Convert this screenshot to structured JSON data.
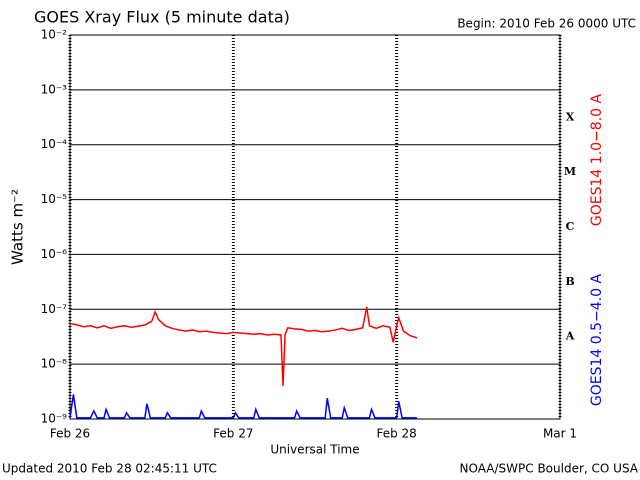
{
  "chart_data": {
    "type": "line",
    "title": "GOES Xray Flux (5 minute data)",
    "subtitle": "Begin:  2010 Feb 26 0000 UTC",
    "xlabel": "Universal Time",
    "ylabel": "Watts m⁻²",
    "footer_left": "Updated 2010 Feb 28 02:45:11 UTC",
    "footer_right": "NOAA/SWPC Boulder, CO USA",
    "log_y": true,
    "grid": true,
    "xlim": [
      0,
      72
    ],
    "xticks": [
      {
        "value": 0,
        "label": "Feb 26"
      },
      {
        "value": 24,
        "label": "Feb 27"
      },
      {
        "value": 48,
        "label": "Feb 28"
      },
      {
        "value": 72,
        "label": "Mar 1"
      }
    ],
    "ylim": [
      1e-09,
      0.01
    ],
    "yticks": [
      {
        "value": 1e-09,
        "label": "10⁻⁹"
      },
      {
        "value": 1e-08,
        "label": "10⁻⁸"
      },
      {
        "value": 1e-07,
        "label": "10⁻⁷"
      },
      {
        "value": 1e-06,
        "label": "10⁻⁶"
      },
      {
        "value": 1e-05,
        "label": "10⁻⁵"
      },
      {
        "value": 0.0001,
        "label": "10⁻⁴"
      },
      {
        "value": 0.001,
        "label": "10⁻³"
      },
      {
        "value": 0.01,
        "label": "10⁻²"
      }
    ],
    "flare_classes": [
      "X",
      "M",
      "C",
      "B",
      "A"
    ],
    "series": [
      {
        "name": "GOES14 1.0−8.0 A",
        "color": "#ff0000",
        "x": [
          0,
          1,
          2,
          3,
          4,
          5,
          6,
          7,
          8,
          9,
          10,
          11,
          12,
          12.5,
          13,
          14,
          15,
          16,
          17,
          18,
          19,
          20,
          21,
          22,
          23,
          24,
          25,
          26,
          27,
          28,
          29,
          30,
          31,
          31.3,
          31.6,
          32,
          33,
          34,
          35,
          36,
          37,
          38,
          39,
          40,
          41,
          42,
          43,
          43.6,
          44,
          45,
          46,
          47,
          47.5,
          48,
          48.3,
          49,
          50,
          51
        ],
        "values": [
          5.5e-08,
          5.2e-08,
          4.8e-08,
          5e-08,
          4.6e-08,
          5e-08,
          4.5e-08,
          4.8e-08,
          5e-08,
          4.7e-08,
          4.9e-08,
          5.2e-08,
          6e-08,
          9e-08,
          6.5e-08,
          5e-08,
          4.5e-08,
          4.2e-08,
          4e-08,
          4.2e-08,
          3.9e-08,
          4e-08,
          3.8e-08,
          3.7e-08,
          3.6e-08,
          3.8e-08,
          3.7e-08,
          3.6e-08,
          3.5e-08,
          3.6e-08,
          3.4e-08,
          3.5e-08,
          3.4e-08,
          4e-09,
          3.5e-08,
          4.6e-08,
          4.4e-08,
          4.3e-08,
          4e-08,
          4.1e-08,
          3.9e-08,
          4e-08,
          4.2e-08,
          4.5e-08,
          4.1e-08,
          4.3e-08,
          4.6e-08,
          1.1e-07,
          5e-08,
          4.5e-08,
          5e-08,
          4.7e-08,
          2.5e-08,
          5e-08,
          7e-08,
          4e-08,
          3.3e-08,
          3e-08
        ]
      },
      {
        "name": "GOES14 0.5−4.0 A",
        "color": "#0000ff",
        "x": [
          0,
          0.5,
          1,
          3,
          3.5,
          4,
          5,
          5.3,
          5.8,
          8,
          8.3,
          8.8,
          11,
          11.3,
          11.8,
          14,
          14.3,
          14.8,
          19,
          19.3,
          19.8,
          24,
          24.3,
          24.8,
          27,
          27.3,
          27.8,
          33,
          33.3,
          33.8,
          37.5,
          37.8,
          38.3,
          40,
          40.3,
          40.8,
          44,
          44.3,
          44.8,
          48,
          48.3,
          48.8,
          51
        ],
        "values": [
          1.05e-09,
          2.8e-09,
          1.05e-09,
          1.05e-09,
          1.4e-09,
          1.05e-09,
          1.05e-09,
          1.5e-09,
          1.05e-09,
          1.05e-09,
          1.3e-09,
          1.05e-09,
          1.05e-09,
          1.9e-09,
          1.05e-09,
          1.05e-09,
          1.3e-09,
          1.05e-09,
          1.05e-09,
          1.4e-09,
          1.05e-09,
          1.05e-09,
          1.3e-09,
          1.05e-09,
          1.05e-09,
          1.5e-09,
          1.05e-09,
          1.05e-09,
          1.4e-09,
          1.05e-09,
          1.05e-09,
          2.4e-09,
          1.05e-09,
          1.05e-09,
          1.6e-09,
          1.05e-09,
          1.05e-09,
          1.5e-09,
          1.05e-09,
          1.05e-09,
          2.1e-09,
          1.05e-09,
          1.05e-09
        ]
      }
    ]
  }
}
